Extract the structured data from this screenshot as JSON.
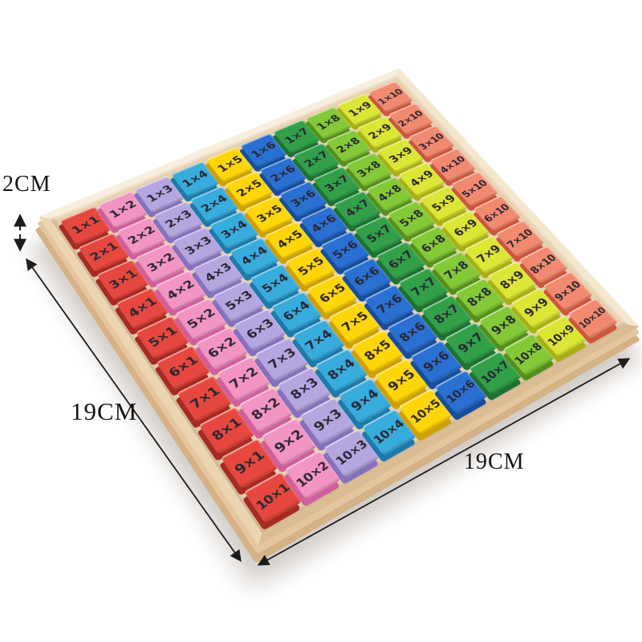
{
  "board": {
    "rows": 10,
    "cols": 10,
    "cells": [
      [
        "1×1",
        "1×2",
        "1×3",
        "1×4",
        "1×5",
        "1×6",
        "1×7",
        "1×8",
        "1×9",
        "1×10"
      ],
      [
        "2×1",
        "2×2",
        "2×3",
        "2×4",
        "2×5",
        "2×6",
        "2×7",
        "2×8",
        "2×9",
        "2×10"
      ],
      [
        "3×1",
        "3×2",
        "3×3",
        "3×4",
        "3×5",
        "3×6",
        "3×7",
        "3×8",
        "3×9",
        "3×10"
      ],
      [
        "4×1",
        "4×2",
        "4×3",
        "4×4",
        "4×5",
        "4×6",
        "4×7",
        "4×8",
        "4×9",
        "4×10"
      ],
      [
        "5×1",
        "5×2",
        "5×3",
        "5×4",
        "5×5",
        "5×6",
        "5×7",
        "5×8",
        "5×9",
        "5×10"
      ],
      [
        "6×1",
        "6×2",
        "6×3",
        "6×4",
        "6×5",
        "6×6",
        "6×7",
        "6×8",
        "6×9",
        "6×10"
      ],
      [
        "7×1",
        "7×2",
        "7×3",
        "7×4",
        "7×5",
        "7×6",
        "7×7",
        "7×8",
        "7×9",
        "7×10"
      ],
      [
        "8×1",
        "8×2",
        "8×3",
        "8×4",
        "8×5",
        "8×6",
        "8×7",
        "8×8",
        "8×9",
        "8×10"
      ],
      [
        "9×1",
        "9×2",
        "9×3",
        "9×4",
        "9×5",
        "9×6",
        "9×7",
        "9×8",
        "9×9",
        "9×10"
      ],
      [
        "10×1",
        "10×2",
        "10×3",
        "10×4",
        "10×5",
        "10×6",
        "10×7",
        "10×8",
        "10×9",
        "10×10"
      ]
    ],
    "column_colors": [
      {
        "top": "#e6473e",
        "side": "#a62b22"
      },
      {
        "top": "#f395c2",
        "side": "#d05f9c"
      },
      {
        "top": "#b5a6e0",
        "side": "#8571bd"
      },
      {
        "top": "#38acdd",
        "side": "#1e7aa9"
      },
      {
        "top": "#ffd60a",
        "side": "#cf9f08"
      },
      {
        "top": "#2a70d2",
        "side": "#174e9b"
      },
      {
        "top": "#31a049",
        "side": "#1d7231"
      },
      {
        "top": "#84ca38",
        "side": "#578f1d"
      },
      {
        "top": "#dbe636",
        "side": "#a8b015"
      },
      {
        "top": "#f28a70",
        "side": "#cc573d"
      }
    ],
    "block_text_color": "#2a2733",
    "wood_face_color": "#ecd5b2",
    "wood_rim_color": "#f0ddbc"
  },
  "annotations": {
    "thickness_label": "2CM",
    "left_dimension_label": "19CM",
    "bottom_dimension_label": "19CM",
    "line_color": "#1c1c1c"
  }
}
